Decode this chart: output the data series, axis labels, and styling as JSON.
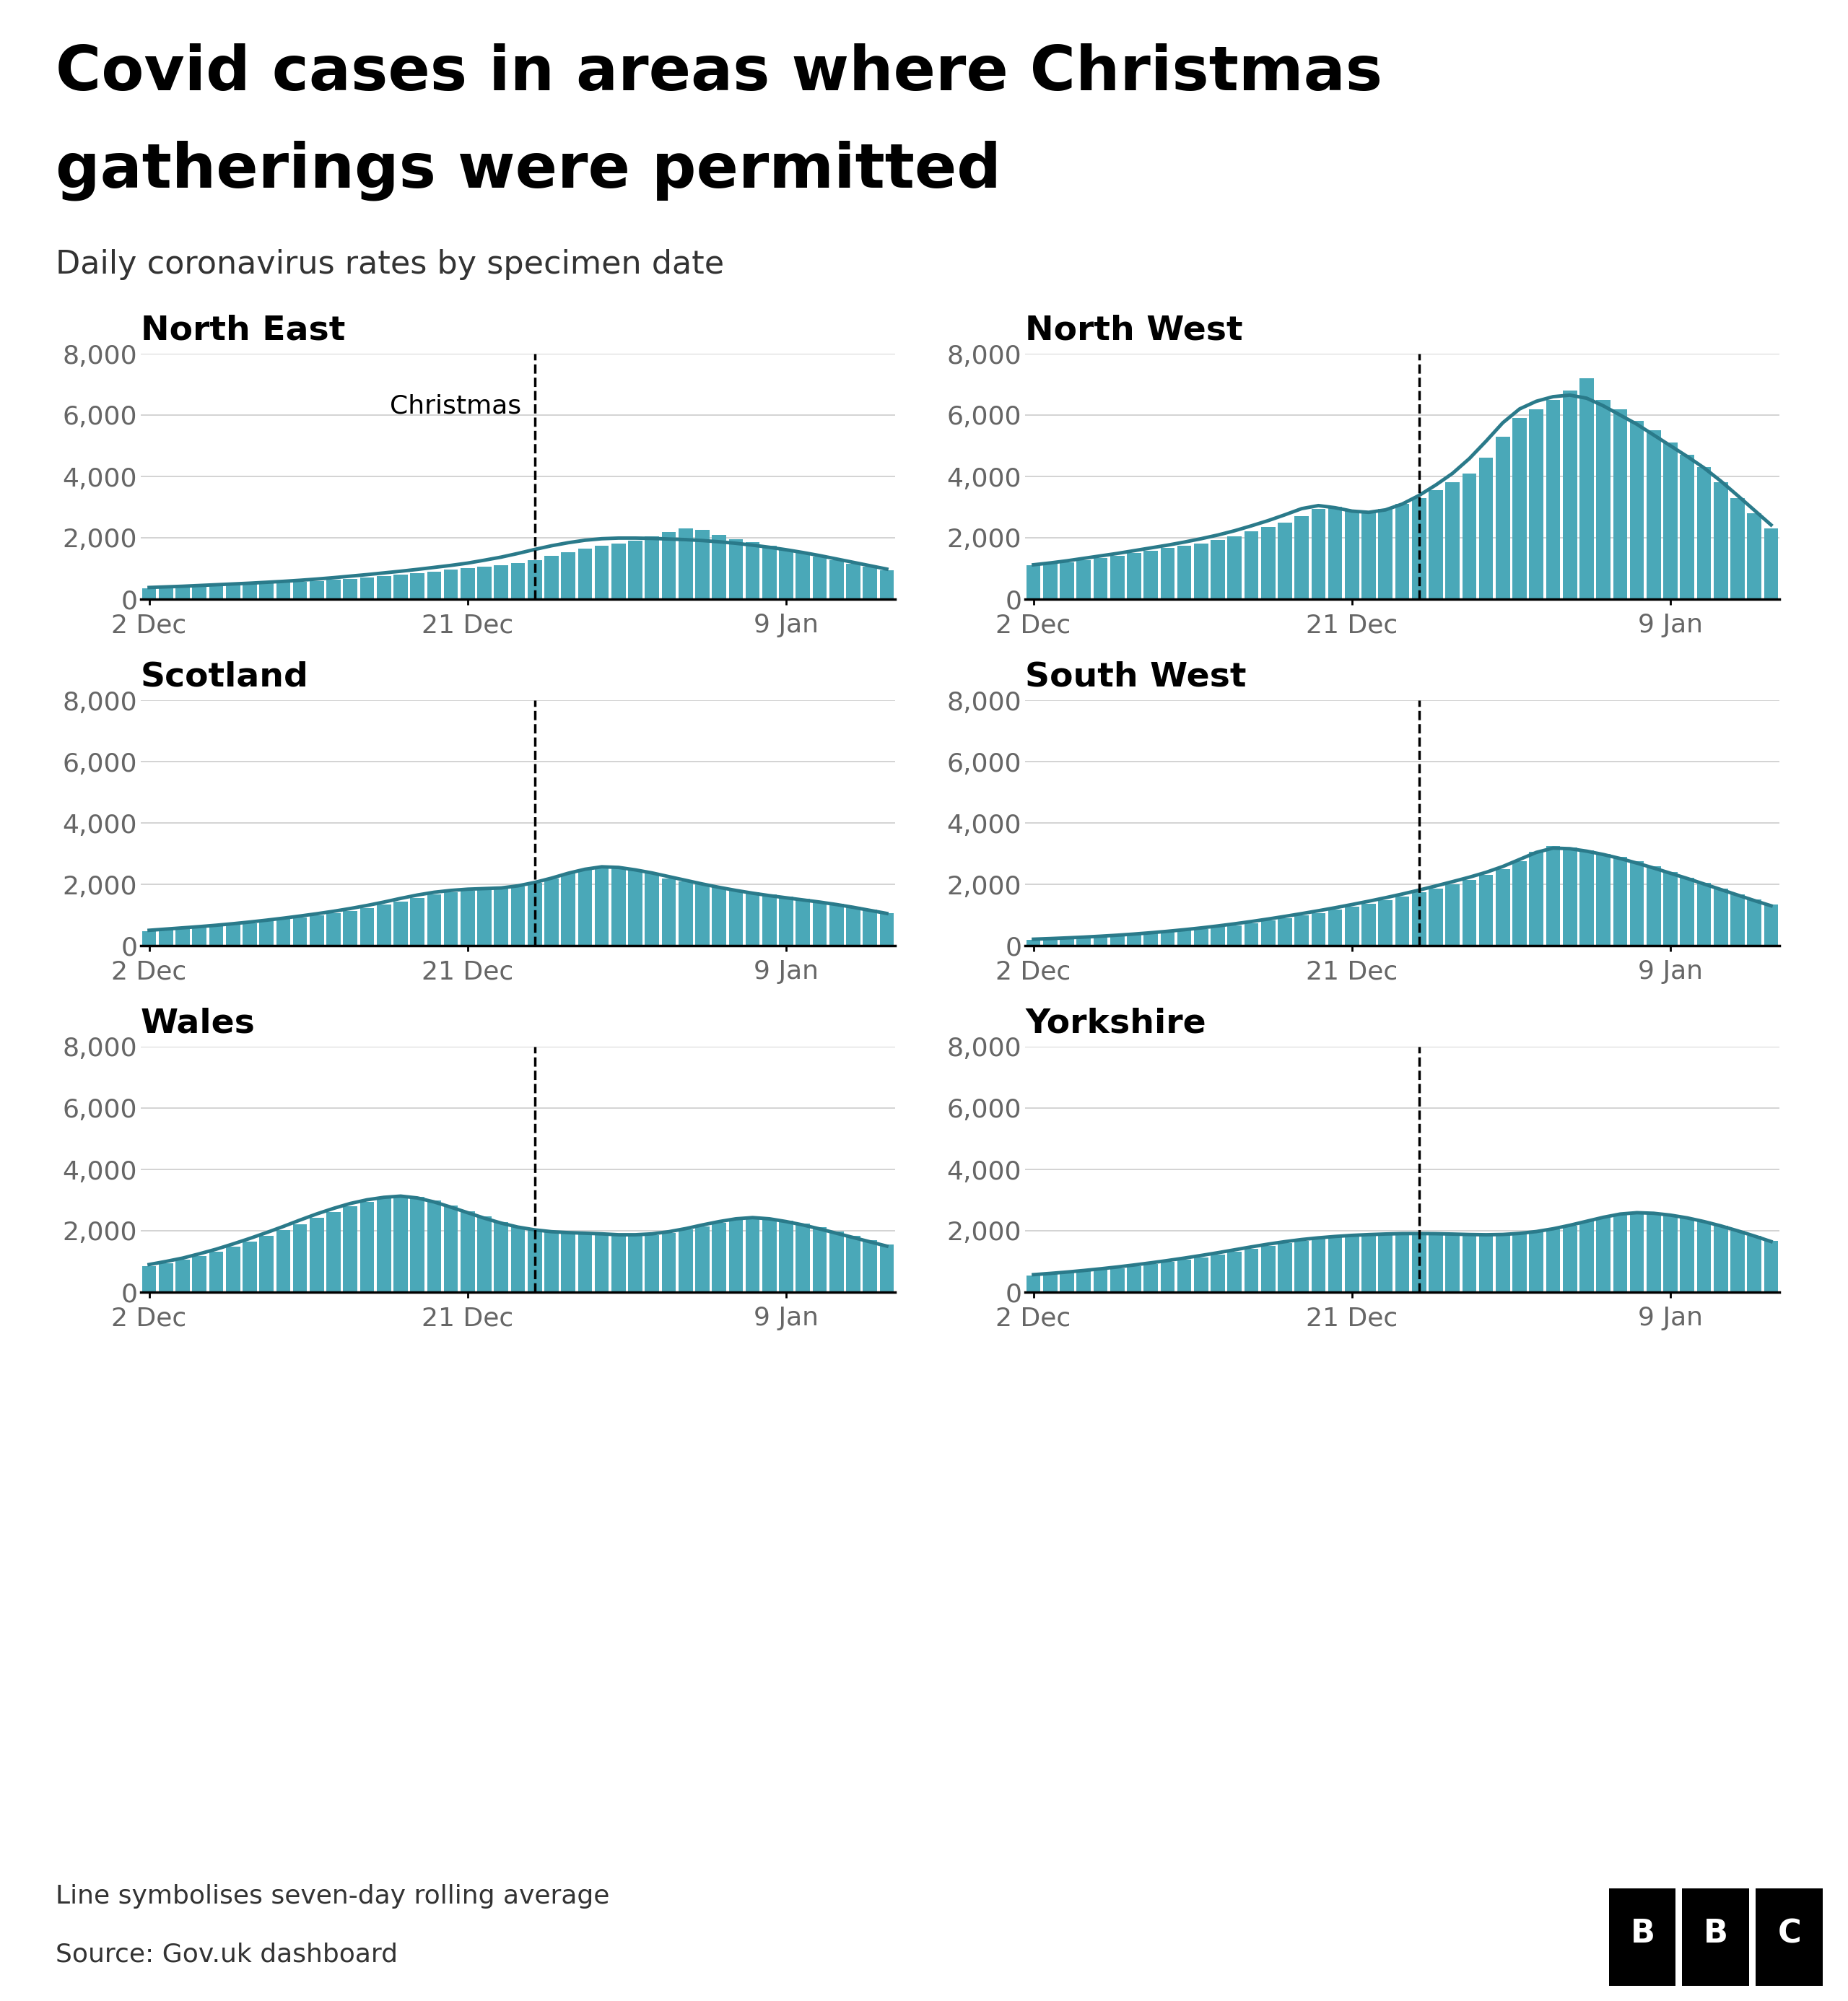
{
  "title_line1": "Covid cases in areas where Christmas",
  "title_line2": "gatherings were permitted",
  "subtitle": "Daily coronavirus rates by specimen date",
  "footnote": "Line symbolises seven-day rolling average",
  "source": "Source: Gov.uk dashboard",
  "bar_color": "#4aa8b8",
  "line_color": "#2a7a8a",
  "ylim": [
    0,
    8000
  ],
  "yticks": [
    0,
    2000,
    4000,
    6000,
    8000
  ],
  "christmas_label": "Christmas",
  "regions": [
    "North East",
    "North West",
    "Scotland",
    "South West",
    "Wales",
    "Yorkshire"
  ],
  "xtick_labels": [
    "2 Dec",
    "21 Dec",
    "9 Jan"
  ],
  "xtick_pos": [
    0,
    19,
    38
  ],
  "christmas_x": 23,
  "n_bars": 45,
  "north_east_bars": [
    350,
    380,
    400,
    420,
    450,
    470,
    490,
    510,
    530,
    560,
    590,
    630,
    670,
    710,
    750,
    800,
    850,
    900,
    960,
    1010,
    1060,
    1110,
    1180,
    1280,
    1400,
    1520,
    1650,
    1750,
    1820,
    1900,
    2050,
    2180,
    2300,
    2250,
    2100,
    1950,
    1850,
    1750,
    1600,
    1500,
    1380,
    1260,
    1150,
    1050,
    940
  ],
  "north_east_line": [
    380,
    400,
    420,
    445,
    470,
    495,
    520,
    550,
    580,
    615,
    655,
    700,
    750,
    800,
    855,
    910,
    970,
    1035,
    1100,
    1175,
    1270,
    1370,
    1490,
    1620,
    1740,
    1840,
    1920,
    1970,
    1990,
    1990,
    1980,
    1960,
    1940,
    1910,
    1870,
    1820,
    1760,
    1690,
    1610,
    1520,
    1420,
    1310,
    1200,
    1090,
    980
  ],
  "north_west_bars": [
    1100,
    1150,
    1200,
    1280,
    1350,
    1420,
    1500,
    1580,
    1660,
    1740,
    1820,
    1920,
    2050,
    2200,
    2350,
    2500,
    2700,
    2950,
    3000,
    2900,
    2850,
    2950,
    3100,
    3300,
    3550,
    3800,
    4100,
    4600,
    5300,
    5900,
    6200,
    6500,
    6800,
    7200,
    6500,
    6200,
    5800,
    5500,
    5100,
    4700,
    4300,
    3800,
    3300,
    2800,
    2300
  ],
  "north_west_line": [
    1120,
    1180,
    1250,
    1330,
    1410,
    1490,
    1580,
    1670,
    1760,
    1860,
    1970,
    2090,
    2230,
    2390,
    2560,
    2750,
    2950,
    3050,
    2980,
    2870,
    2830,
    2910,
    3100,
    3380,
    3720,
    4100,
    4580,
    5150,
    5750,
    6200,
    6450,
    6600,
    6650,
    6550,
    6300,
    6000,
    5700,
    5350,
    5000,
    4650,
    4280,
    3850,
    3380,
    2900,
    2420
  ],
  "scotland_bars": [
    480,
    520,
    560,
    600,
    640,
    690,
    740,
    800,
    860,
    920,
    990,
    1060,
    1140,
    1230,
    1330,
    1440,
    1560,
    1660,
    1740,
    1800,
    1840,
    1860,
    1940,
    2050,
    2200,
    2350,
    2500,
    2600,
    2550,
    2450,
    2350,
    2200,
    2100,
    2000,
    1900,
    1810,
    1730,
    1660,
    1590,
    1520,
    1440,
    1360,
    1270,
    1170,
    1060
  ],
  "scotland_line": [
    500,
    540,
    580,
    620,
    665,
    715,
    770,
    830,
    895,
    965,
    1040,
    1120,
    1210,
    1310,
    1420,
    1540,
    1650,
    1740,
    1800,
    1840,
    1860,
    1880,
    1950,
    2060,
    2200,
    2360,
    2490,
    2570,
    2550,
    2470,
    2370,
    2250,
    2130,
    2010,
    1900,
    1800,
    1710,
    1630,
    1560,
    1490,
    1420,
    1340,
    1250,
    1150,
    1050
  ],
  "south_west_bars": [
    200,
    220,
    240,
    265,
    290,
    320,
    355,
    395,
    440,
    490,
    545,
    605,
    670,
    740,
    815,
    895,
    980,
    1070,
    1165,
    1265,
    1370,
    1480,
    1600,
    1730,
    1870,
    2010,
    2150,
    2300,
    2500,
    2750,
    3050,
    3250,
    3200,
    3100,
    3000,
    2900,
    2750,
    2580,
    2400,
    2220,
    2040,
    1860,
    1680,
    1500,
    1330
  ],
  "south_west_line": [
    210,
    230,
    253,
    278,
    307,
    340,
    378,
    420,
    468,
    520,
    578,
    642,
    712,
    787,
    868,
    954,
    1044,
    1138,
    1236,
    1340,
    1448,
    1562,
    1682,
    1810,
    1946,
    2086,
    2230,
    2390,
    2580,
    2810,
    3040,
    3180,
    3160,
    3080,
    2970,
    2840,
    2690,
    2530,
    2360,
    2190,
    2010,
    1830,
    1650,
    1470,
    1300
  ],
  "wales_bars": [
    850,
    950,
    1050,
    1180,
    1320,
    1480,
    1650,
    1830,
    2020,
    2220,
    2430,
    2620,
    2790,
    2940,
    3060,
    3150,
    3100,
    2980,
    2820,
    2640,
    2460,
    2290,
    2150,
    2040,
    1970,
    1940,
    1920,
    1900,
    1870,
    1850,
    1870,
    1940,
    2040,
    2150,
    2260,
    2360,
    2420,
    2400,
    2330,
    2230,
    2110,
    1980,
    1840,
    1700,
    1560
  ],
  "wales_line": [
    900,
    1000,
    1110,
    1250,
    1400,
    1570,
    1750,
    1940,
    2140,
    2350,
    2550,
    2730,
    2890,
    3010,
    3090,
    3130,
    3070,
    2940,
    2770,
    2590,
    2410,
    2250,
    2120,
    2030,
    1970,
    1940,
    1920,
    1900,
    1870,
    1870,
    1900,
    1970,
    2070,
    2190,
    2300,
    2390,
    2430,
    2390,
    2300,
    2190,
    2060,
    1920,
    1780,
    1640,
    1500
  ],
  "yorkshire_bars": [
    550,
    590,
    630,
    680,
    730,
    785,
    845,
    910,
    980,
    1055,
    1135,
    1220,
    1310,
    1405,
    1500,
    1595,
    1680,
    1755,
    1815,
    1860,
    1890,
    1910,
    1920,
    1920,
    1910,
    1890,
    1870,
    1860,
    1870,
    1900,
    1960,
    2050,
    2170,
    2300,
    2430,
    2550,
    2600,
    2580,
    2520,
    2430,
    2310,
    2170,
    2010,
    1840,
    1660
  ],
  "yorkshire_line": [
    570,
    610,
    655,
    705,
    760,
    820,
    885,
    955,
    1030,
    1110,
    1195,
    1285,
    1380,
    1475,
    1565,
    1645,
    1715,
    1770,
    1815,
    1850,
    1875,
    1895,
    1908,
    1910,
    1905,
    1893,
    1878,
    1870,
    1880,
    1915,
    1975,
    2065,
    2180,
    2310,
    2440,
    2545,
    2590,
    2570,
    2510,
    2420,
    2300,
    2160,
    2000,
    1830,
    1650
  ]
}
